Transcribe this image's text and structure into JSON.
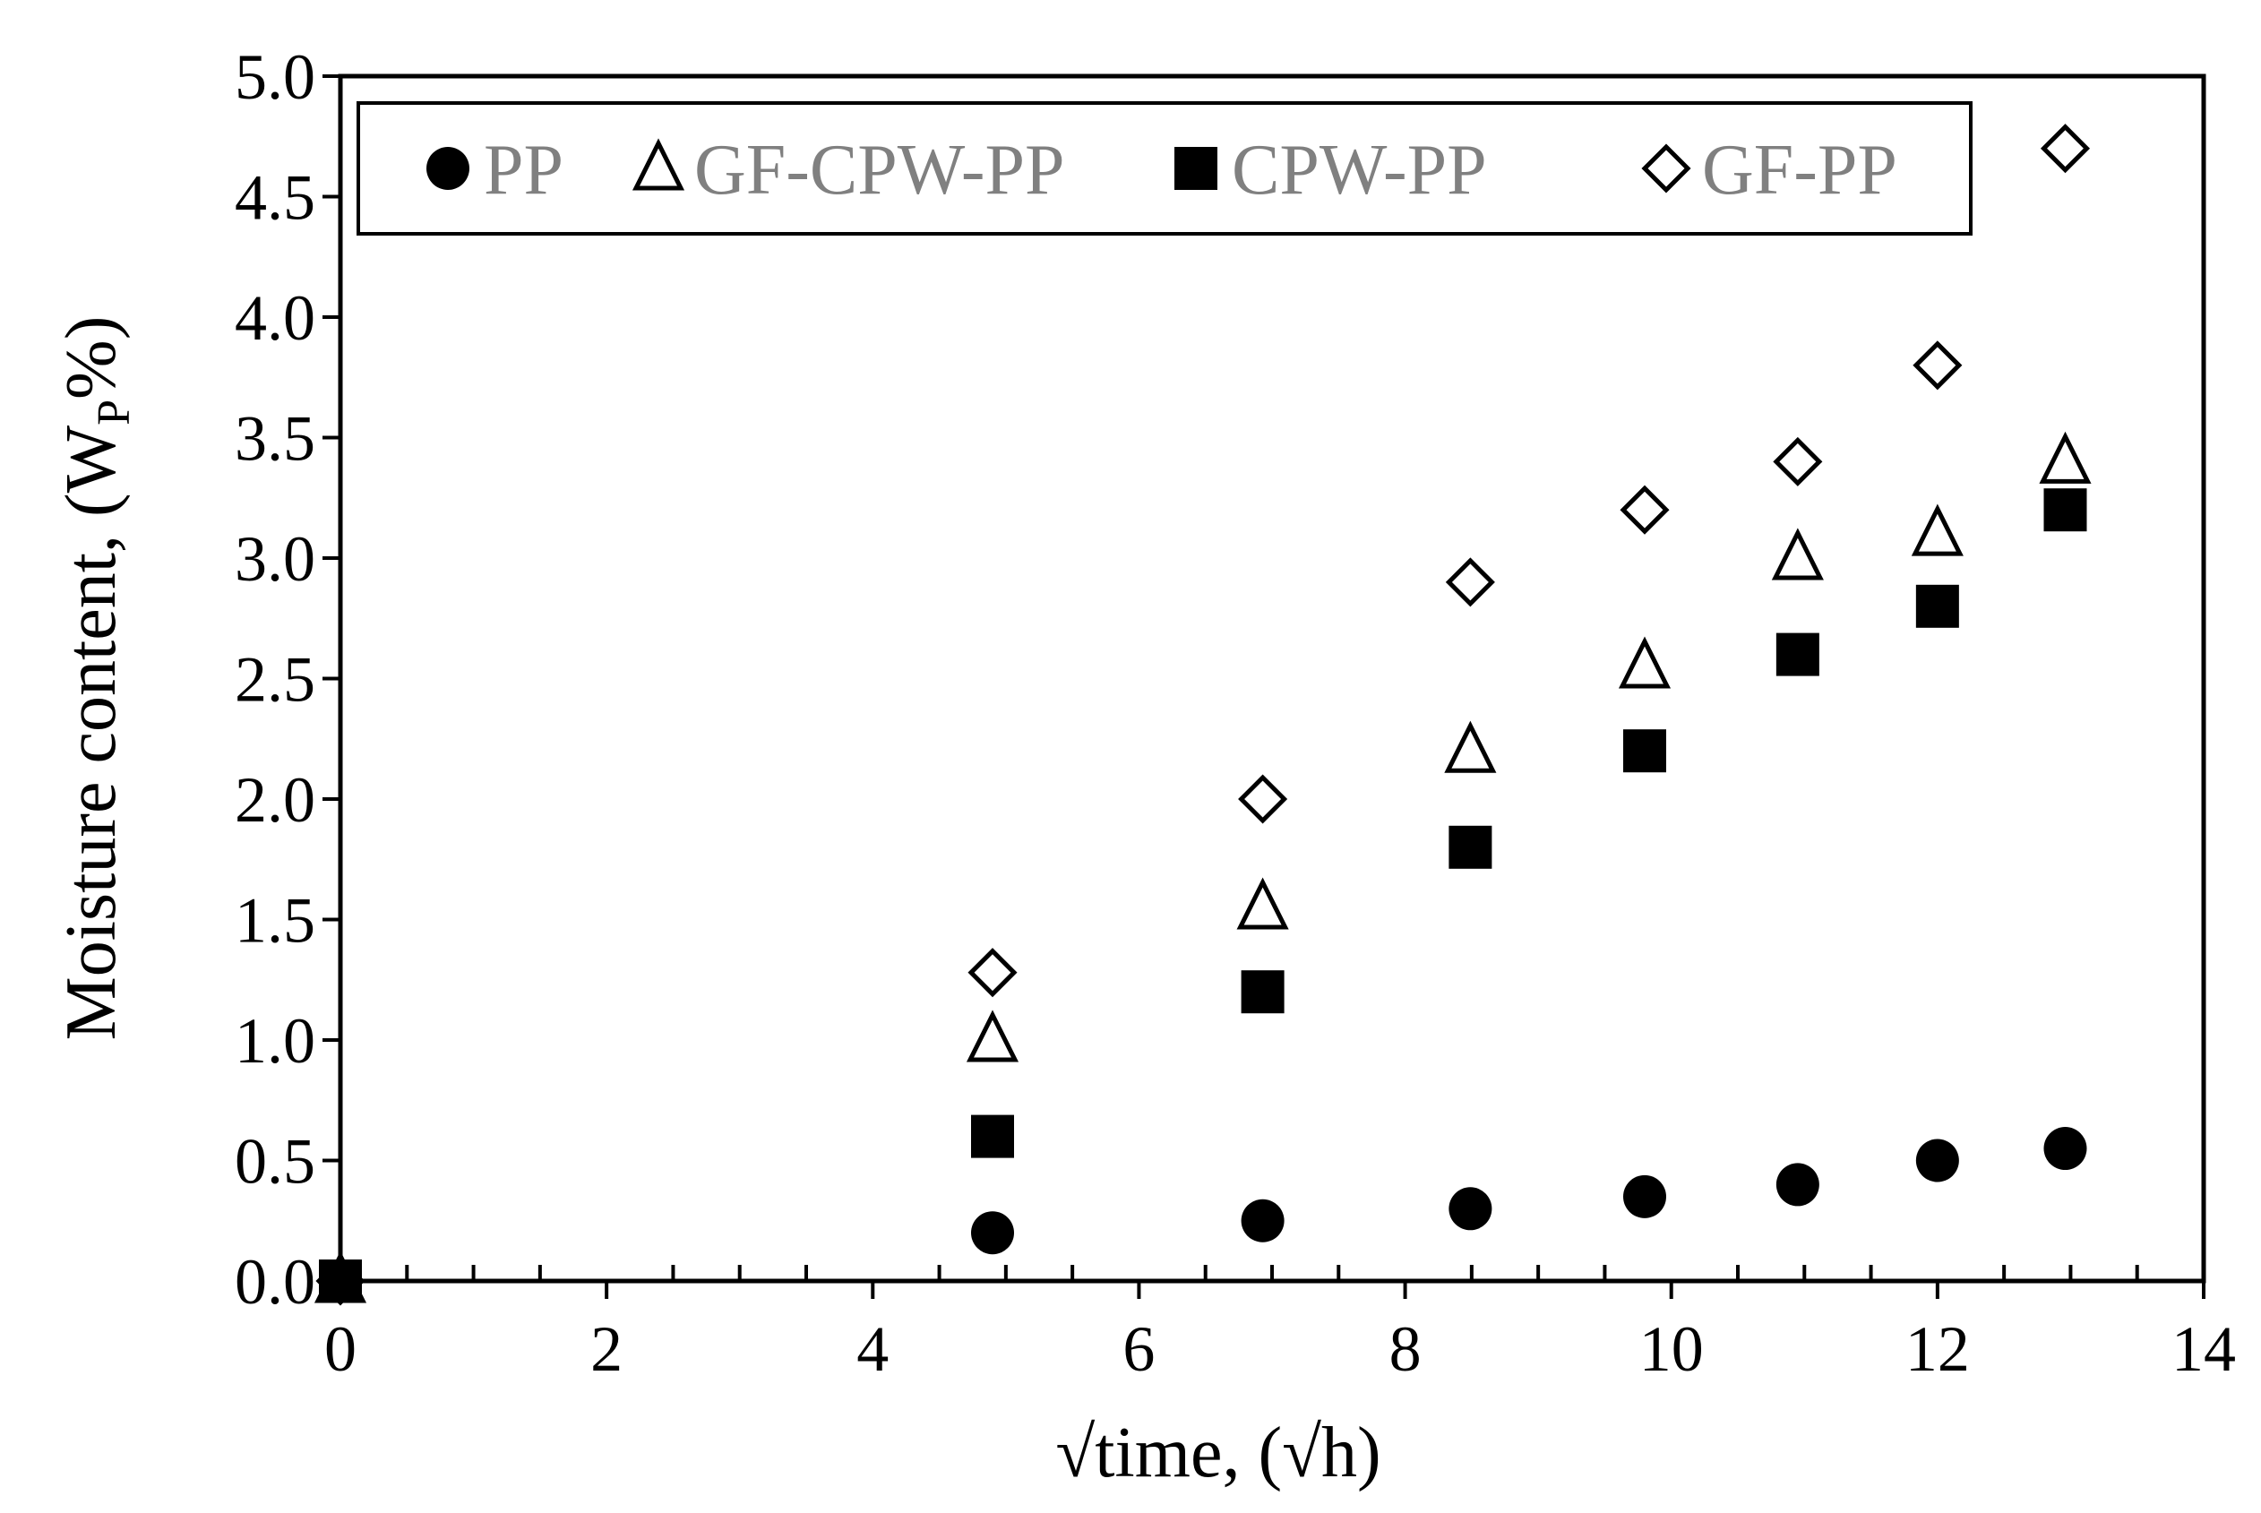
{
  "chart_data": {
    "type": "scatter",
    "title": "",
    "xlabel": "√time, (√h)",
    "ylabel": {
      "main": "Moisture content, (W",
      "sub": "P",
      "tail": "%)"
    },
    "xlim": [
      0,
      14
    ],
    "ylim": [
      0,
      5
    ],
    "x_ticks": [
      0,
      2,
      4,
      6,
      8,
      10,
      12,
      14
    ],
    "y_ticks": [
      "0.0",
      "0.5",
      "1.0",
      "1.5",
      "2.0",
      "2.5",
      "3.0",
      "3.5",
      "4.0",
      "4.5",
      "5.0"
    ],
    "grid": false,
    "legend_position": "top",
    "x": [
      0,
      4.9,
      6.93,
      8.49,
      9.8,
      10.95,
      12.0,
      12.96
    ],
    "series": [
      {
        "name": "PP",
        "marker": "filled-circle",
        "values": [
          0,
          0.2,
          0.25,
          0.3,
          0.35,
          0.4,
          0.5,
          0.55
        ]
      },
      {
        "name": "GF-CPW-PP",
        "marker": "open-triangle",
        "values": [
          0,
          1.0,
          1.55,
          2.2,
          2.55,
          3.0,
          3.1,
          3.4
        ]
      },
      {
        "name": "CPW-PP",
        "marker": "filled-square",
        "values": [
          0,
          0.6,
          1.2,
          1.8,
          2.2,
          2.6,
          2.8,
          3.2
        ]
      },
      {
        "name": "GF-PP",
        "marker": "open-diamond",
        "values": [
          0,
          1.28,
          2.0,
          2.9,
          3.2,
          3.4,
          3.8,
          4.7
        ]
      }
    ],
    "colors": {
      "marker": "#000000",
      "legend_text": "#808080",
      "axis": "#000000"
    }
  }
}
